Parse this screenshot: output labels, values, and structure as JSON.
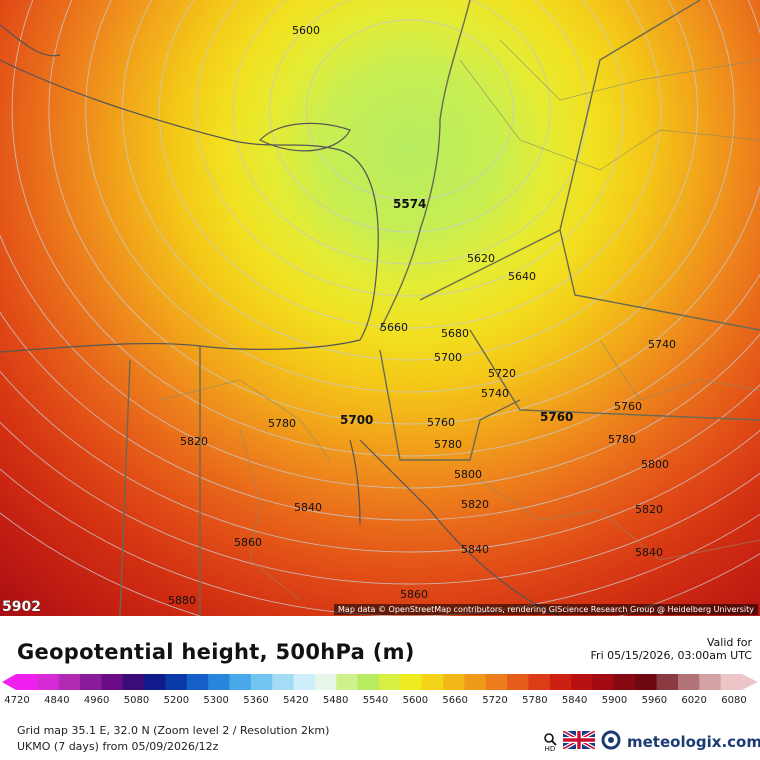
{
  "map": {
    "contours": [
      {
        "value": "5600",
        "label": "5600"
      },
      {
        "value": "5620",
        "label": "5620"
      },
      {
        "value": "5640",
        "label": "5640"
      },
      {
        "value": "5660",
        "label": "5660"
      },
      {
        "value": "5680",
        "label": "5680"
      },
      {
        "value": "5700",
        "label": "5700"
      },
      {
        "value": "5720",
        "label": "5720"
      },
      {
        "value": "5740",
        "label": "5740"
      },
      {
        "value": "5760",
        "label": "5760"
      },
      {
        "value": "5780",
        "label": "5780"
      },
      {
        "value": "5800",
        "label": "5800"
      },
      {
        "value": "5820",
        "label": "5820"
      },
      {
        "value": "5840",
        "label": "5840"
      },
      {
        "value": "5860",
        "label": "5860"
      },
      {
        "value": "5880",
        "label": "5880"
      }
    ],
    "bold_labels": [
      "5574",
      "5700",
      "5760"
    ],
    "extreme_value": "5902",
    "attribution": "Map data © OpenStreetMap contributors, rendering GIScience Research Group @ Heidelberg University"
  },
  "footer": {
    "title": "Geopotential height, 500hPa (m)",
    "valid_label": "Valid for",
    "valid_time": "Fri 05/15/2026, 03:00am UTC",
    "grid_info": "Grid map 35.1 E, 32.0 N (Zoom level 2 / Resolution 2km)",
    "model_info": "UKMO (7 days) from  05/09/2026/12z",
    "brand": "meteologix.com",
    "hd_label": "HD"
  },
  "legend": {
    "ticks": [
      "4720",
      "4840",
      "4960",
      "5080",
      "5200",
      "5300",
      "5360",
      "5420",
      "5480",
      "5540",
      "5600",
      "5660",
      "5720",
      "5780",
      "5840",
      "5900",
      "5960",
      "6020",
      "6080"
    ],
    "colors": [
      "#f020f0",
      "#d62ad6",
      "#b22ab4",
      "#8a1a9a",
      "#6a0c88",
      "#3a0c7a",
      "#101a8a",
      "#0a3aa8",
      "#1460c8",
      "#2a86dc",
      "#48a8ea",
      "#74c4f0",
      "#a4dcf6",
      "#cdeefa",
      "#e8f6ea",
      "#cff08a",
      "#b8ec60",
      "#d8ee40",
      "#f0ea20",
      "#f4d418",
      "#f2b818",
      "#f09a1c",
      "#ec7c1c",
      "#e65c1a",
      "#dc3c16",
      "#cc2010",
      "#b81010",
      "#a00a10",
      "#860810",
      "#6e0810",
      "#8a3a40",
      "#b27478",
      "#d4a2a4",
      "#ecc6c6"
    ]
  }
}
